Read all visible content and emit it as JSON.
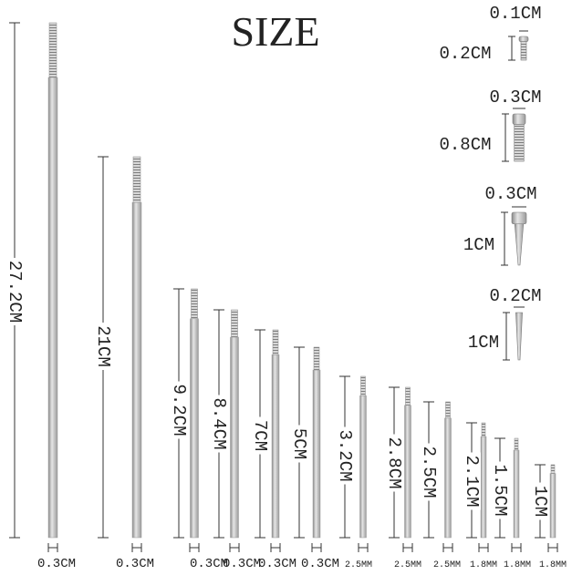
{
  "title": "SIZE",
  "rods": [
    {
      "length": "27.2CM",
      "width": "0.3CM"
    },
    {
      "length": "21CM",
      "width": "0.3CM"
    },
    {
      "length": "9.2CM",
      "width": "0.3CM"
    },
    {
      "length": "8.4CM",
      "width": "0.3CM"
    },
    {
      "length": "7CM",
      "width": "0.3CM"
    },
    {
      "length": "5CM",
      "width": "0.3CM"
    },
    {
      "length": "3.2CM",
      "width": "2.5MM"
    },
    {
      "length": "2.8CM",
      "width": "2.5MM"
    },
    {
      "length": "2.5CM",
      "width": "2.5MM"
    },
    {
      "length": "2.1CM",
      "width": "1.8MM"
    },
    {
      "length": "1.5CM",
      "width": "1.8MM"
    },
    {
      "length": "1CM",
      "width": "1.8MM"
    }
  ],
  "screws": [
    {
      "width": "0.1CM",
      "length": "0.2CM"
    },
    {
      "width": "0.3CM",
      "length": "0.8CM"
    },
    {
      "width": "0.3CM",
      "length": "1CM"
    },
    {
      "width": "0.2CM",
      "length": "1CM"
    }
  ]
}
